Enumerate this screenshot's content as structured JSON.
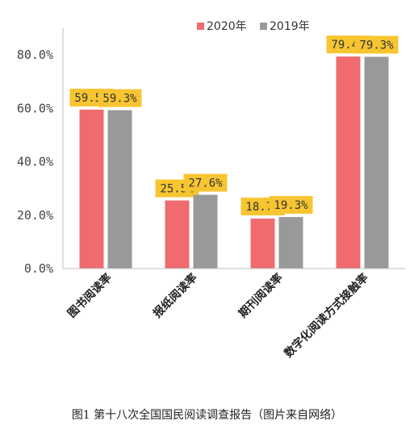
{
  "caption": "图1 第十八次全国国民阅读调查报告（图片来自网络）",
  "chart_data": {
    "type": "bar",
    "categories": [
      "图书阅读率",
      "报纸阅读率",
      "期刊阅读率",
      "数字化阅读方式接触率"
    ],
    "series": [
      {
        "name": "2020年",
        "values": [
          59.5,
          25.5,
          18.7,
          79.4
        ],
        "labels": [
          "59.5%",
          "25.5%",
          "18.7%",
          "79.4%"
        ],
        "color": "#f06b6e"
      },
      {
        "name": "2019年",
        "values": [
          59.3,
          27.6,
          19.3,
          79.3
        ],
        "labels": [
          "59.3%",
          "27.6%",
          "19.3%",
          "79.3%"
        ],
        "color": "#999999"
      }
    ],
    "ylim": [
      0,
      90
    ],
    "yticks": [
      0,
      20,
      40,
      60,
      80
    ],
    "ytick_labels": [
      "0.0%",
      "20.0%",
      "40.0%",
      "60.0%",
      "80.0%"
    ],
    "legend_position": "top-right",
    "data_label_background": "#f7c531",
    "grid": false
  }
}
